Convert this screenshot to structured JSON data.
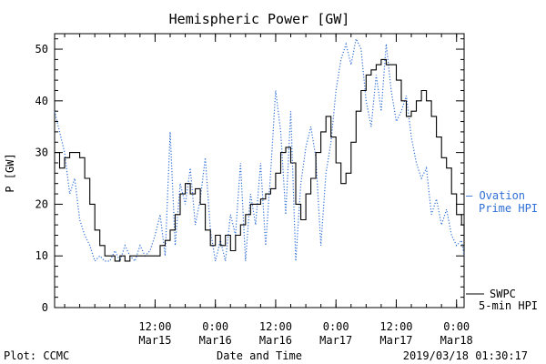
{
  "chart_data": {
    "type": "line",
    "title": "Hemispheric Power [GW]",
    "ylabel": "P [GW]",
    "xlabel": "Date and Time",
    "ylim": [
      0,
      53
    ],
    "xlim": [
      "2019-03-14 16:00",
      "2019-03-18 01:30"
    ],
    "yticks": [
      0,
      10,
      20,
      30,
      40,
      50
    ],
    "xticks": [
      {
        "at": "2019-03-15 12:00",
        "time": "12:00",
        "date": "Mar15"
      },
      {
        "at": "2019-03-16 00:00",
        "time": "0:00",
        "date": "Mar16"
      },
      {
        "at": "2019-03-16 12:00",
        "time": "12:00",
        "date": "Mar16"
      },
      {
        "at": "2019-03-17 00:00",
        "time": "0:00",
        "date": "Mar17"
      },
      {
        "at": "2019-03-17 12:00",
        "time": "12:00",
        "date": "Mar17"
      },
      {
        "at": "2019-03-18 00:00",
        "time": "0:00",
        "date": "Mar18"
      }
    ],
    "grid": false,
    "series": [
      {
        "name": "Ovation Prime HPI",
        "color": "#2f6fd6",
        "style": "dotted",
        "points": [
          [
            "2019-03-14 16:00",
            38
          ],
          [
            "2019-03-14 17:00",
            34
          ],
          [
            "2019-03-14 18:00",
            30
          ],
          [
            "2019-03-14 19:00",
            22
          ],
          [
            "2019-03-14 20:00",
            25
          ],
          [
            "2019-03-14 21:00",
            17
          ],
          [
            "2019-03-14 22:00",
            14
          ],
          [
            "2019-03-14 23:00",
            12
          ],
          [
            "2019-03-15 00:00",
            9
          ],
          [
            "2019-03-15 01:00",
            10
          ],
          [
            "2019-03-15 02:00",
            9
          ],
          [
            "2019-03-15 03:00",
            9
          ],
          [
            "2019-03-15 04:00",
            11
          ],
          [
            "2019-03-15 05:00",
            9
          ],
          [
            "2019-03-15 06:00",
            12
          ],
          [
            "2019-03-15 07:00",
            10
          ],
          [
            "2019-03-15 08:00",
            9
          ],
          [
            "2019-03-15 09:00",
            12
          ],
          [
            "2019-03-15 10:00",
            10
          ],
          [
            "2019-03-15 11:00",
            11
          ],
          [
            "2019-03-15 12:00",
            14
          ],
          [
            "2019-03-15 13:00",
            18
          ],
          [
            "2019-03-15 14:00",
            10
          ],
          [
            "2019-03-15 15:00",
            34
          ],
          [
            "2019-03-15 16:00",
            12
          ],
          [
            "2019-03-15 17:00",
            24
          ],
          [
            "2019-03-15 18:00",
            20
          ],
          [
            "2019-03-15 19:00",
            27
          ],
          [
            "2019-03-15 20:00",
            16
          ],
          [
            "2019-03-15 21:00",
            21
          ],
          [
            "2019-03-15 22:00",
            29
          ],
          [
            "2019-03-15 23:00",
            15
          ],
          [
            "2019-03-16 00:00",
            9
          ],
          [
            "2019-03-16 01:00",
            13
          ],
          [
            "2019-03-16 02:00",
            9
          ],
          [
            "2019-03-16 03:00",
            18
          ],
          [
            "2019-03-16 04:00",
            14
          ],
          [
            "2019-03-16 05:00",
            28
          ],
          [
            "2019-03-16 06:00",
            9
          ],
          [
            "2019-03-16 07:00",
            22
          ],
          [
            "2019-03-16 08:00",
            16
          ],
          [
            "2019-03-16 09:00",
            28
          ],
          [
            "2019-03-16 10:00",
            12
          ],
          [
            "2019-03-16 11:00",
            26
          ],
          [
            "2019-03-16 12:00",
            42
          ],
          [
            "2019-03-16 13:00",
            34
          ],
          [
            "2019-03-16 14:00",
            18
          ],
          [
            "2019-03-16 15:00",
            38
          ],
          [
            "2019-03-16 16:00",
            9
          ],
          [
            "2019-03-16 17:00",
            24
          ],
          [
            "2019-03-16 18:00",
            31
          ],
          [
            "2019-03-16 19:00",
            35
          ],
          [
            "2019-03-16 20:00",
            29
          ],
          [
            "2019-03-16 21:00",
            12
          ],
          [
            "2019-03-16 22:00",
            26
          ],
          [
            "2019-03-16 23:00",
            32
          ],
          [
            "2019-03-17 00:00",
            42
          ],
          [
            "2019-03-17 01:00",
            48
          ],
          [
            "2019-03-17 02:00",
            51
          ],
          [
            "2019-03-17 03:00",
            47
          ],
          [
            "2019-03-17 04:00",
            52
          ],
          [
            "2019-03-17 05:00",
            50
          ],
          [
            "2019-03-17 06:00",
            40
          ],
          [
            "2019-03-17 07:00",
            35
          ],
          [
            "2019-03-17 08:00",
            45
          ],
          [
            "2019-03-17 09:00",
            38
          ],
          [
            "2019-03-17 10:00",
            51
          ],
          [
            "2019-03-17 11:00",
            42
          ],
          [
            "2019-03-17 12:00",
            36
          ],
          [
            "2019-03-17 13:00",
            38
          ],
          [
            "2019-03-17 14:00",
            41
          ],
          [
            "2019-03-17 15:00",
            33
          ],
          [
            "2019-03-17 16:00",
            28
          ],
          [
            "2019-03-17 17:00",
            25
          ],
          [
            "2019-03-17 18:00",
            27
          ],
          [
            "2019-03-17 19:00",
            18
          ],
          [
            "2019-03-17 20:00",
            21
          ],
          [
            "2019-03-17 21:00",
            16
          ],
          [
            "2019-03-17 22:00",
            19
          ],
          [
            "2019-03-17 23:00",
            14
          ],
          [
            "2019-03-18 00:00",
            12
          ],
          [
            "2019-03-18 01:00",
            13
          ],
          [
            "2019-03-18 01:30",
            10
          ]
        ]
      },
      {
        "name": "SWPC 5-min HPI",
        "color": "#000000",
        "style": "solid",
        "points": [
          [
            "2019-03-14 16:00",
            30
          ],
          [
            "2019-03-14 17:00",
            27
          ],
          [
            "2019-03-14 18:00",
            29
          ],
          [
            "2019-03-14 19:00",
            30
          ],
          [
            "2019-03-14 21:00",
            29
          ],
          [
            "2019-03-14 22:00",
            25
          ],
          [
            "2019-03-14 23:00",
            20
          ],
          [
            "2019-03-15 00:00",
            15
          ],
          [
            "2019-03-15 01:00",
            12
          ],
          [
            "2019-03-15 02:00",
            10
          ],
          [
            "2019-03-15 04:00",
            9
          ],
          [
            "2019-03-15 05:00",
            10
          ],
          [
            "2019-03-15 06:00",
            9
          ],
          [
            "2019-03-15 07:00",
            10
          ],
          [
            "2019-03-15 12:00",
            10
          ],
          [
            "2019-03-15 13:00",
            12
          ],
          [
            "2019-03-15 14:00",
            13
          ],
          [
            "2019-03-15 15:00",
            15
          ],
          [
            "2019-03-15 16:00",
            18
          ],
          [
            "2019-03-15 17:00",
            22
          ],
          [
            "2019-03-15 18:00",
            24
          ],
          [
            "2019-03-15 19:00",
            22
          ],
          [
            "2019-03-15 20:00",
            23
          ],
          [
            "2019-03-15 21:00",
            20
          ],
          [
            "2019-03-15 22:00",
            15
          ],
          [
            "2019-03-15 23:00",
            12
          ],
          [
            "2019-03-16 00:00",
            14
          ],
          [
            "2019-03-16 01:00",
            12
          ],
          [
            "2019-03-16 02:00",
            14
          ],
          [
            "2019-03-16 03:00",
            11
          ],
          [
            "2019-03-16 04:00",
            14
          ],
          [
            "2019-03-16 05:00",
            16
          ],
          [
            "2019-03-16 06:00",
            18
          ],
          [
            "2019-03-16 07:00",
            20
          ],
          [
            "2019-03-16 08:00",
            20
          ],
          [
            "2019-03-16 09:00",
            21
          ],
          [
            "2019-03-16 10:00",
            22
          ],
          [
            "2019-03-16 11:00",
            23
          ],
          [
            "2019-03-16 12:00",
            26
          ],
          [
            "2019-03-16 13:00",
            30
          ],
          [
            "2019-03-16 14:00",
            31
          ],
          [
            "2019-03-16 15:00",
            28
          ],
          [
            "2019-03-16 16:00",
            20
          ],
          [
            "2019-03-16 17:00",
            17
          ],
          [
            "2019-03-16 18:00",
            22
          ],
          [
            "2019-03-16 19:00",
            25
          ],
          [
            "2019-03-16 20:00",
            30
          ],
          [
            "2019-03-16 21:00",
            34
          ],
          [
            "2019-03-16 22:00",
            37
          ],
          [
            "2019-03-16 23:00",
            33
          ],
          [
            "2019-03-17 00:00",
            28
          ],
          [
            "2019-03-17 01:00",
            24
          ],
          [
            "2019-03-17 02:00",
            26
          ],
          [
            "2019-03-17 03:00",
            32
          ],
          [
            "2019-03-17 04:00",
            38
          ],
          [
            "2019-03-17 05:00",
            42
          ],
          [
            "2019-03-17 06:00",
            45
          ],
          [
            "2019-03-17 07:00",
            46
          ],
          [
            "2019-03-17 08:00",
            47
          ],
          [
            "2019-03-17 09:00",
            48
          ],
          [
            "2019-03-17 10:00",
            47
          ],
          [
            "2019-03-17 11:00",
            47
          ],
          [
            "2019-03-17 12:00",
            44
          ],
          [
            "2019-03-17 13:00",
            40
          ],
          [
            "2019-03-17 14:00",
            37
          ],
          [
            "2019-03-17 15:00",
            38
          ],
          [
            "2019-03-17 16:00",
            40
          ],
          [
            "2019-03-17 17:00",
            42
          ],
          [
            "2019-03-17 18:00",
            40
          ],
          [
            "2019-03-17 19:00",
            37
          ],
          [
            "2019-03-17 20:00",
            33
          ],
          [
            "2019-03-17 21:00",
            29
          ],
          [
            "2019-03-17 22:00",
            27
          ],
          [
            "2019-03-17 23:00",
            22
          ],
          [
            "2019-03-18 00:00",
            18
          ],
          [
            "2019-03-18 01:00",
            16
          ],
          [
            "2019-03-18 01:30",
            11
          ]
        ]
      }
    ],
    "legend": {
      "placement": "right",
      "ovation": [
        "— Ovation",
        "Prime HPI"
      ],
      "swpc": [
        "SWPC",
        "5-min HPI"
      ]
    }
  },
  "footer": {
    "plot_credit": "Plot: CCMC",
    "timestamp": "2019/03/18 01:30:17"
  }
}
